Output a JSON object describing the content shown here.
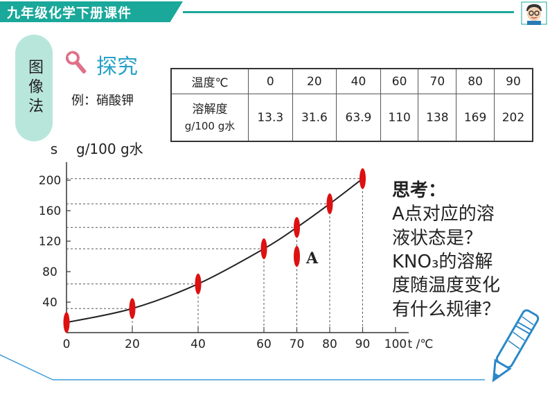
{
  "header": {
    "title": "九年级化学下册课件",
    "accent": "#19a89a"
  },
  "side_label": "图像法",
  "explore": {
    "label": "探究",
    "icon": "wrench-icon"
  },
  "example": "例：硝酸钾",
  "table": {
    "row1_label": "温度℃",
    "row2_label_line1": "溶解度",
    "row2_label_line2": "g/100 g水",
    "temperatures": [
      "0",
      "20",
      "40",
      "60",
      "70",
      "80",
      "90"
    ],
    "solubilities": [
      "13.3",
      "31.6",
      "63.9",
      "110",
      "138",
      "169",
      "202"
    ]
  },
  "think": {
    "title": "思考：",
    "q_a_line1": "A点对应的溶",
    "q_a_line2": "液状态是？",
    "q_b_line1": "KNO₃的溶解",
    "q_b_line2": "度随温度变化",
    "q_b_line3": "有什么规律？"
  },
  "chart_data": {
    "type": "line",
    "ylabel_s": "s",
    "ylabel_units": "g/100 g水",
    "xlabel": "t /℃",
    "x_ticks": [
      "0",
      "20",
      "40",
      "60",
      "70",
      "80",
      "90",
      "100"
    ],
    "y_ticks": [
      "40",
      "80",
      "120",
      "160",
      "200"
    ],
    "xlim": [
      0,
      100
    ],
    "ylim": [
      0,
      200
    ],
    "series": [
      {
        "x": [
          0,
          20,
          40,
          60,
          70,
          80,
          90
        ],
        "y": [
          13.3,
          31.6,
          63.9,
          110,
          138,
          169,
          202
        ]
      }
    ],
    "annotation": {
      "label": "A",
      "x": 70,
      "y": 100
    },
    "colors": {
      "curve": "#222222",
      "points": "#dd1111",
      "grid": "#555555"
    }
  }
}
